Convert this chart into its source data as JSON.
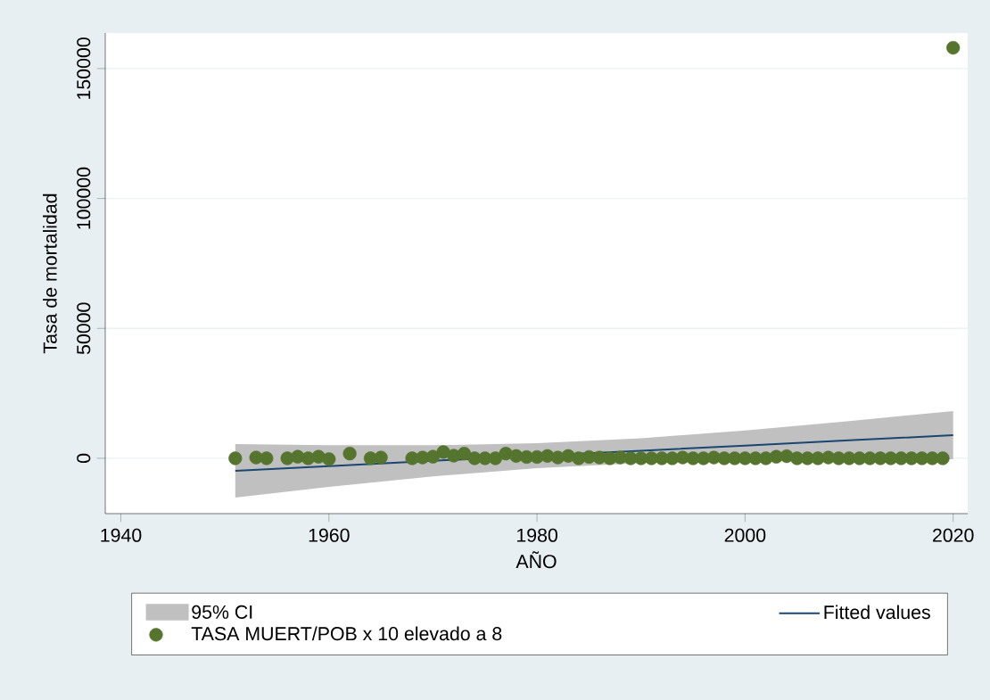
{
  "chart_data": {
    "type": "scatter",
    "xlabel": "AÑO",
    "ylabel": "Tasa de mortalidad",
    "xlim": [
      1938.5,
      2021.4
    ],
    "xticks": [
      1940,
      1960,
      1980,
      2000,
      2020
    ],
    "ylim": [
      -21300,
      163700
    ],
    "yticks": [
      0,
      50000,
      100000,
      150000
    ],
    "grid": "y",
    "legend": "bottom",
    "annotations": [
      "95% CI"
    ],
    "series": [
      {
        "name": "Fitted values",
        "type": "line",
        "color": "#1a476f",
        "line_style": "solid",
        "marker": "none",
        "x": [
          1951,
          1960,
          1970,
          1980,
          1990,
          2000,
          2010,
          2020
        ],
        "values": [
          -4800,
          -3000,
          -1000,
          1000,
          2900,
          4900,
          6900,
          8900
        ],
        "lower": [
          -15100,
          -11000,
          -7000,
          -3800,
          -1800,
          -900,
          -500,
          -400
        ],
        "upper": [
          5500,
          5000,
          5000,
          5800,
          7700,
          10700,
          14300,
          18200
        ]
      },
      {
        "name": "TASA MUERT/POB x 10 elevado a 8",
        "color": "#55752f",
        "marker": "circle",
        "x": [
          1951,
          1953,
          1954,
          1956,
          1957,
          1958,
          1959,
          1960,
          1962,
          1964,
          1965,
          1968,
          1969,
          1970,
          1971,
          1972,
          1973,
          1974,
          1975,
          1976,
          1977,
          1978,
          1979,
          1980,
          1981,
          1982,
          1983,
          1984,
          1985,
          1986,
          1987,
          1988,
          1989,
          1990,
          1991,
          1992,
          1993,
          1994,
          1995,
          1996,
          1997,
          1998,
          1999,
          2000,
          2001,
          2002,
          2003,
          2004,
          2005,
          2006,
          2007,
          2008,
          2009,
          2010,
          2011,
          2012,
          2013,
          2014,
          2015,
          2016,
          2017,
          2018,
          2019,
          2020
        ],
        "values": [
          0,
          300,
          0,
          0,
          600,
          0,
          600,
          -300,
          1800,
          0,
          300,
          0,
          300,
          600,
          2400,
          1000,
          1800,
          0,
          0,
          0,
          1800,
          900,
          500,
          500,
          900,
          300,
          900,
          0,
          500,
          300,
          0,
          300,
          0,
          0,
          0,
          0,
          0,
          300,
          0,
          0,
          300,
          0,
          0,
          0,
          0,
          0,
          600,
          800,
          0,
          0,
          0,
          300,
          0,
          0,
          0,
          0,
          0,
          0,
          0,
          0,
          0,
          0,
          0,
          158000
        ]
      }
    ]
  }
}
